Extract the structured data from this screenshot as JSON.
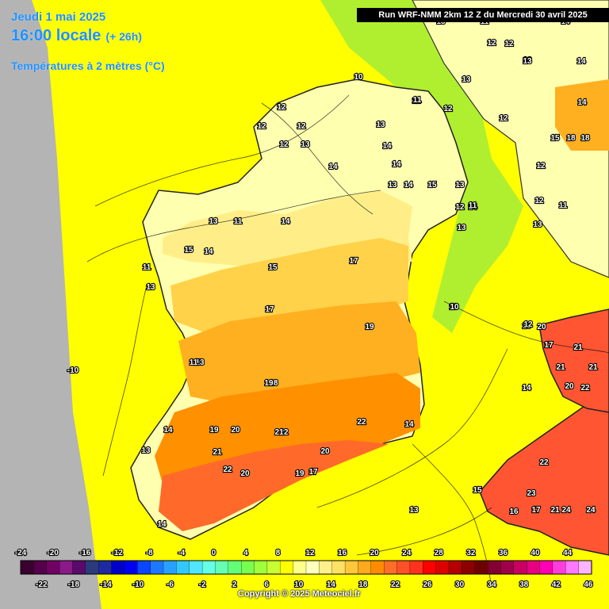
{
  "header": {
    "date": "Jeudi 1 mai 2025",
    "time": "16:00 locale",
    "lead": "(+ 26h)",
    "parameter": "Températures à 2 mètres (°C)",
    "run": "Run WRF-NMM 2km 12 Z du Mercredi 30 avril 2025"
  },
  "footer": {
    "copyright": "Copyright © 2025 Meteociel.fr"
  },
  "colors": {
    "sea": "#ffff00",
    "offshore_grey": "#b4b4b4",
    "cool_green": "#b0ef30",
    "land_12": "#ffffb0",
    "land_14": "#ffee88",
    "land_16": "#ffd24a",
    "land_18": "#ffb020",
    "land_20": "#ff9000",
    "land_22": "#ff6a2a",
    "land_24": "#ff5533"
  },
  "legend": {
    "colors": [
      "#3a0030",
      "#55004a",
      "#720064",
      "#8a1a8a",
      "#5a0a6a",
      "#2a3a7a",
      "#1e2aa0",
      "#0000c8",
      "#0000f0",
      "#0a46ff",
      "#1e78ff",
      "#28a0ff",
      "#32c8ff",
      "#50e6ff",
      "#64ffe6",
      "#64ffb4",
      "#64ff78",
      "#78ff50",
      "#a0ff3c",
      "#c8ff32",
      "#ffff00",
      "#ffff8c",
      "#ffffbe",
      "#fff08c",
      "#ffe164",
      "#ffc83c",
      "#ffaa1e",
      "#ff8c00",
      "#ff6e28",
      "#ff5028",
      "#ff321e",
      "#ff0000",
      "#dc0000",
      "#b40000",
      "#8c0000",
      "#6e0000",
      "#820032",
      "#a0004b",
      "#c80064",
      "#e60082",
      "#ff00b4",
      "#ff3cdc",
      "#ff78ff",
      "#ffb4ff"
    ],
    "top_labels": [
      "-24",
      "-20",
      "-16",
      "-12",
      "-8",
      "-4",
      "0",
      "4",
      "8",
      "12",
      "16",
      "20",
      "24",
      "28",
      "32",
      "36",
      "40",
      "44"
    ],
    "bottom_labels": [
      "-22",
      "-18",
      "-14",
      "-10",
      "-6",
      "-2",
      "2",
      "6",
      "10",
      "14",
      "18",
      "22",
      "26",
      "30",
      "34",
      "38",
      "42",
      "46"
    ]
  },
  "map_labels": [
    "10",
    "11",
    "12",
    "12",
    "12",
    "12",
    "13",
    "13",
    "14",
    "14",
    "14",
    "12",
    "13",
    "14",
    "15",
    "13",
    "11",
    "12",
    "14",
    "13",
    "13",
    "14",
    "17",
    "15",
    "11",
    "17",
    "19",
    "16",
    "13",
    "12",
    "15",
    "12",
    "14",
    "10",
    "11",
    "13",
    "11",
    "20",
    "18",
    "19",
    "20",
    "21",
    "22",
    "21",
    "20",
    "22",
    "20",
    "19",
    "17",
    "14",
    "14",
    "13",
    "17",
    "21",
    "21",
    "21",
    "20",
    "22",
    "14",
    "22",
    "22",
    "23",
    "16",
    "17",
    "24",
    "24",
    "21",
    "15",
    "13",
    "14",
    "12",
    "13",
    "14",
    "12",
    "11",
    "18",
    "18",
    "15",
    "13",
    "14",
    "12",
    "12",
    "13",
    "13",
    "13",
    "11",
    "10",
    "14",
    "-10",
    "13",
    "11",
    "19"
  ]
}
